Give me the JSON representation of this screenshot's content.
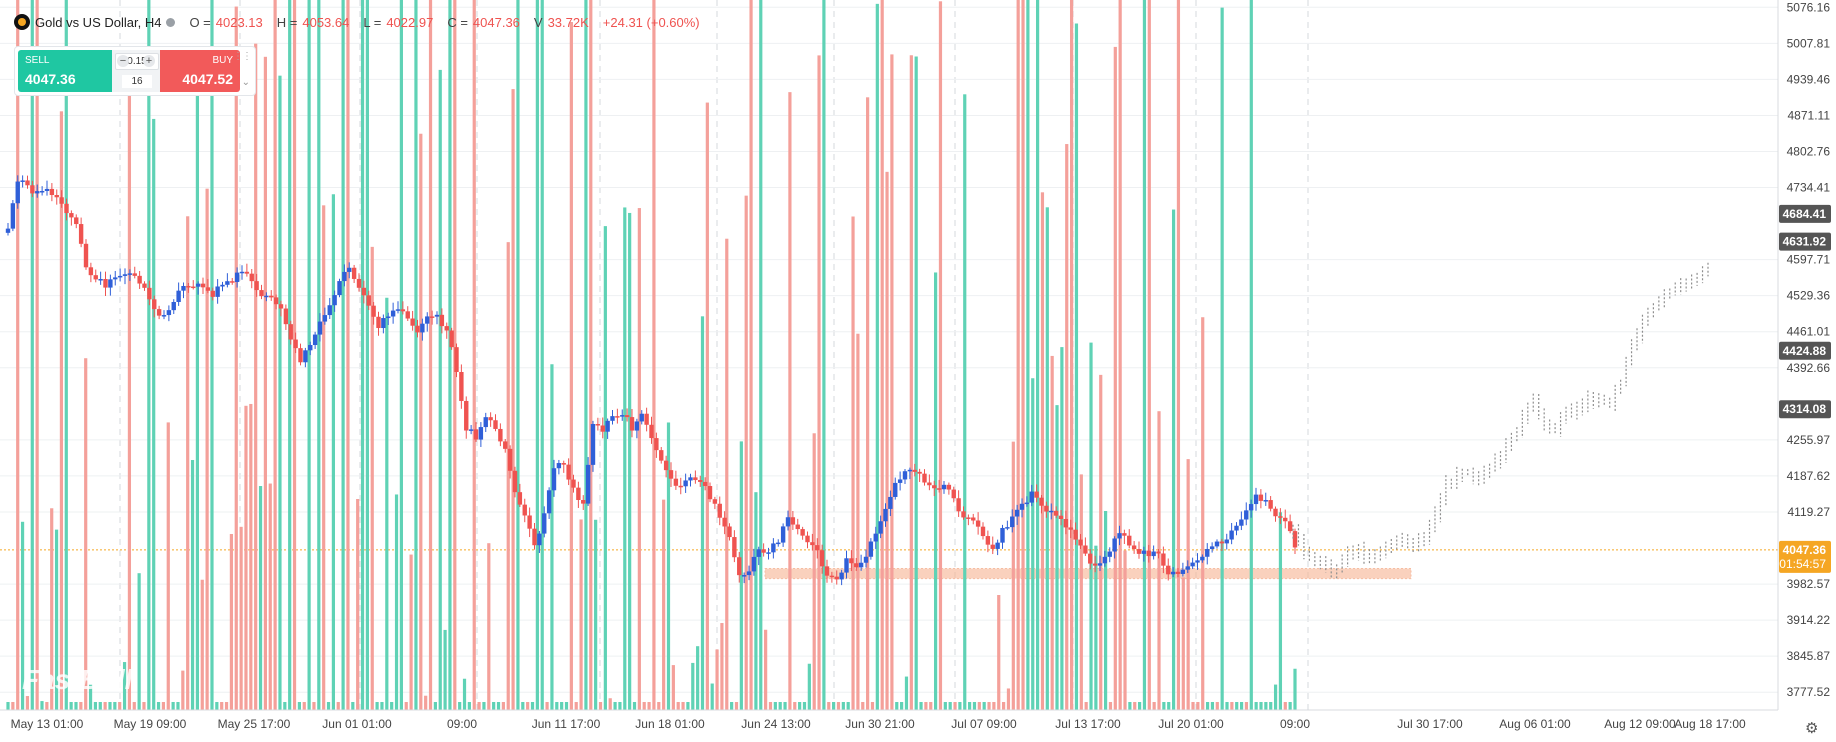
{
  "header": {
    "symbol": "Gold vs US Dollar, H4",
    "open_label": "O =",
    "open": "4023.13",
    "high_label": "H =",
    "high": "4053.64",
    "low_label": "L =",
    "low": "4022.97",
    "close_label": "C =",
    "close": "4047.36",
    "volume_label": "V",
    "volume": "33.72K",
    "change": "+24.31 (+0.60%)"
  },
  "trade": {
    "sell_label": "SELL",
    "sell_price": "4047.36",
    "buy_label": "BUY",
    "buy_price": "4047.52",
    "quantity": "0.15",
    "spread": "16",
    "minus": "−",
    "plus": "+"
  },
  "watermark": "FastBull",
  "colors": {
    "up": "#2f5fd8",
    "down": "#ef5350",
    "vol_up": "#5fd2b5",
    "vol_down": "#f4a09a",
    "zone": "#f8b99a",
    "current": "#f5a623",
    "projection": "#8e8e8e",
    "badge": "#555555"
  },
  "chart_data": {
    "type": "candlestick",
    "title": "Gold vs US Dollar, H4",
    "ylim": [
      3740,
      5090
    ],
    "y_ticks": [
      5076.16,
      5007.81,
      4939.46,
      4871.11,
      4802.76,
      4734.41,
      4597.71,
      4529.36,
      4461.01,
      4392.66,
      4255.97,
      4187.62,
      4119.27,
      3982.57,
      3914.22,
      3845.87,
      3777.52
    ],
    "x_ticks": [
      "May 13 01:00",
      "May 19 09:00",
      "May 25 17:00",
      "Jun 01 01:00",
      "09:00",
      "Jun 11 17:00",
      "Jun 18 01:00",
      "Jun 24 13:00",
      "Jun 30 21:00",
      "Jul 07 09:00",
      "Jul 13 17:00",
      "Jul 20 01:00",
      "09:00",
      "Jul 30 17:00",
      "Aug 06 01:00",
      "Aug 12 09:00",
      "Aug 18 17:00"
    ],
    "price_badges": [
      {
        "value": "4684.41",
        "color": "#555555"
      },
      {
        "value": "4631.92",
        "color": "#555555"
      },
      {
        "value": "4424.88",
        "color": "#555555"
      },
      {
        "value": "4314.08",
        "color": "#555555"
      },
      {
        "value": "4047.36",
        "color": "#f5a623",
        "countdown": "01:54:57"
      }
    ],
    "current_price": 4047.36,
    "support_zone": [
      3993,
      4012
    ],
    "price_path": [
      4660,
      4748,
      4735,
      4722,
      4728,
      4712,
      4690,
      4668,
      4590,
      4560,
      4548,
      4560,
      4575,
      4560,
      4545,
      4505,
      4488,
      4520,
      4545,
      4552,
      4542,
      4530,
      4555,
      4562,
      4574,
      4560,
      4528,
      4522,
      4500,
      4445,
      4405,
      4440,
      4480,
      4510,
      4555,
      4580,
      4540,
      4510,
      4470,
      4492,
      4508,
      4480,
      4459,
      4484,
      4490,
      4460,
      4390,
      4280,
      4260,
      4305,
      4280,
      4240,
      4162,
      4110,
      4055,
      4115,
      4200,
      4215,
      4160,
      4135,
      4290,
      4275,
      4300,
      4305,
      4280,
      4310,
      4255,
      4215,
      4180,
      4162,
      4188,
      4178,
      4150,
      4110,
      4070,
      4000,
      4010,
      4045,
      4042,
      4065,
      4115,
      4085,
      4060,
      4040,
      4005,
      3987,
      4028,
      4020,
      4040,
      4075,
      4130,
      4170,
      4200,
      4195,
      4178,
      4162,
      4170,
      4140,
      4112,
      4102,
      4068,
      4050,
      4083,
      4108,
      4135,
      4152,
      4130,
      4118,
      4100,
      4080,
      4055,
      4025,
      4015,
      4048,
      4083,
      4060,
      4045,
      4040,
      4036,
      4000,
      4002,
      4020,
      4022,
      4050,
      4060,
      4068,
      4095,
      4120,
      4152,
      4140,
      4113,
      4102,
      4052
    ],
    "projection_path": [
      4075,
      4050,
      4030,
      4010,
      4008,
      4040,
      4045,
      4033,
      4043,
      4053,
      4060,
      4058,
      4070,
      4120,
      4168,
      4188,
      4198,
      4180,
      4205,
      4230,
      4255,
      4300,
      4326,
      4288,
      4272,
      4300,
      4316,
      4334,
      4325,
      4320,
      4360,
      4440,
      4475,
      4505,
      4535,
      4548,
      4550,
      4565,
      4580
    ],
    "volume_path": [
      0.28,
      0.3,
      0.26,
      0.32,
      0.3,
      0.34,
      0.29,
      0.35,
      0.31,
      0.28,
      0.33,
      0.36,
      0.3,
      0.27,
      0.31,
      0.35,
      0.38,
      0.4,
      0.34,
      0.3,
      0.33,
      0.37,
      0.42,
      0.36,
      0.32,
      0.35,
      0.4,
      0.44,
      0.47,
      0.5,
      0.46,
      0.4,
      0.38,
      0.42,
      0.46,
      0.52,
      0.55,
      0.48,
      0.42,
      0.45,
      0.5,
      0.48,
      0.44,
      0.4,
      0.38,
      0.41,
      0.36,
      0.33,
      0.3,
      0.34,
      0.32,
      0.3,
      0.28,
      0.26
    ]
  }
}
